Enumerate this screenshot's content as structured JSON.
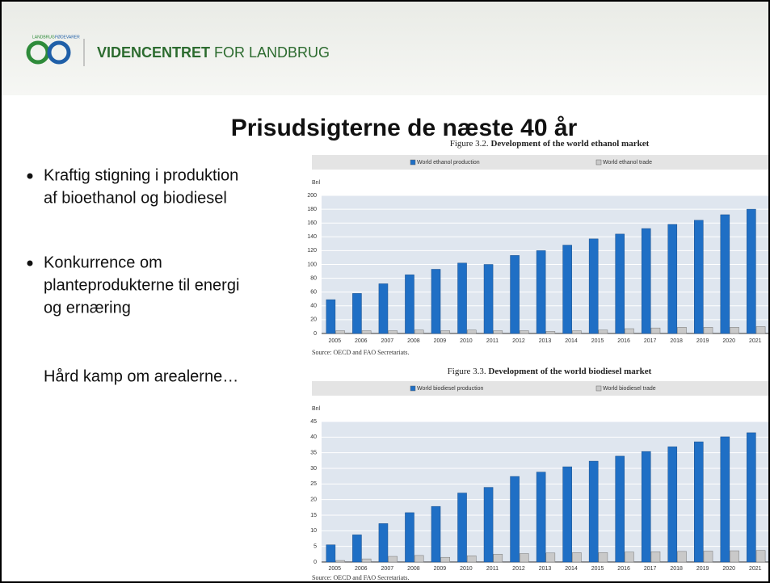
{
  "header": {
    "brand_bold": "VIDENCENTRET",
    "brand_rest": "FOR LANDBRUG",
    "logo_top": "LANDBRUG",
    "logo_right": "FØDEVARER"
  },
  "title": "Prisudsigterne de næste 40 år",
  "bullets": [
    [
      "Kraftig stigning i produktion",
      "af bioethanol og biodiesel"
    ],
    [
      "Konkurrence om",
      "planteprodukterne til energi",
      "og ernæring"
    ]
  ],
  "note": "Hård kamp om arealerne…",
  "chart_data": [
    {
      "type": "bar",
      "figure_label": "Figure 3.2.",
      "title": "Development of the world ethanol market",
      "y_label": "Bnl",
      "source": "Source: OECD and FAO Secretariats.",
      "categories": [
        "2005",
        "2006",
        "2007",
        "2008",
        "2009",
        "2010",
        "2011",
        "2012",
        "2013",
        "2014",
        "2015",
        "2016",
        "2017",
        "2018",
        "2019",
        "2020",
        "2021"
      ],
      "series": [
        {
          "name": "World ethanol production",
          "color": "#1f6fc5",
          "values": [
            49,
            58,
            72,
            85,
            93,
            102,
            100,
            113,
            120,
            128,
            137,
            144,
            152,
            158,
            164,
            172,
            180
          ]
        },
        {
          "name": "World ethanol trade",
          "color": "#c9c9c9",
          "values": [
            4,
            4,
            4,
            5,
            4,
            5,
            4,
            4,
            3,
            4,
            5,
            7,
            8,
            9,
            9,
            9,
            10
          ]
        }
      ],
      "ylim": [
        0,
        200
      ],
      "yticks": [
        0,
        20,
        40,
        60,
        80,
        100,
        120,
        140,
        160,
        180,
        200
      ],
      "grid": true
    },
    {
      "type": "bar",
      "figure_label": "Figure 3.3.",
      "title": "Development of the world biodiesel market",
      "y_label": "Bnl",
      "source": "Source: OECD and FAO Secretariats.",
      "categories": [
        "2005",
        "2006",
        "2007",
        "2008",
        "2009",
        "2010",
        "2011",
        "2012",
        "2013",
        "2014",
        "2015",
        "2016",
        "2017",
        "2018",
        "2019",
        "2020",
        "2021"
      ],
      "series": [
        {
          "name": "World biodiesel production",
          "color": "#1f6fc5",
          "values": [
            5.5,
            8.7,
            12.3,
            15.8,
            17.8,
            22.1,
            23.9,
            27.4,
            28.8,
            30.5,
            32.3,
            33.9,
            35.4,
            36.9,
            38.5,
            40.1,
            41.4
          ]
        },
        {
          "name": "World biodiesel trade",
          "color": "#c9c9c9",
          "values": [
            0.5,
            1,
            1.8,
            2.1,
            1.5,
            2,
            2.5,
            2.7,
            2.9,
            3,
            3,
            3.2,
            3.3,
            3.4,
            3.5,
            3.6,
            3.7
          ]
        }
      ],
      "ylim": [
        0,
        45
      ],
      "yticks": [
        0,
        5,
        10,
        15,
        20,
        25,
        30,
        35,
        40,
        45
      ],
      "grid": true
    }
  ]
}
